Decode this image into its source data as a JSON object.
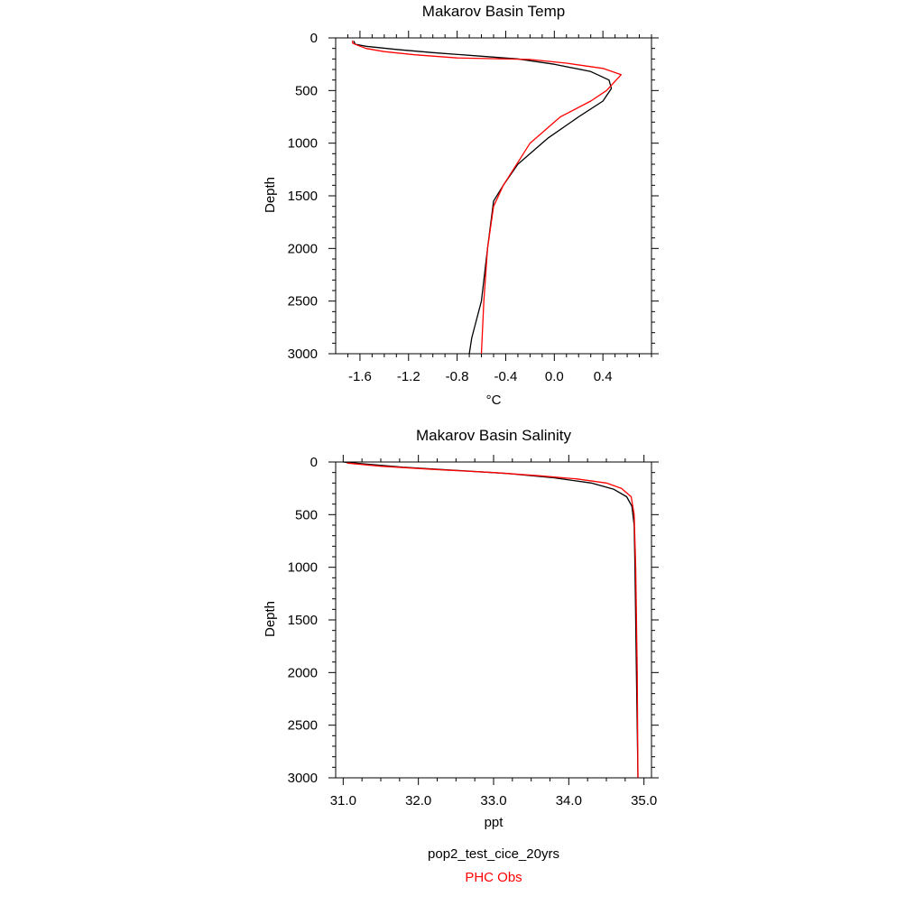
{
  "chart_data": [
    {
      "type": "line",
      "title": "Makarov Basin Temp",
      "xlabel": "°C",
      "ylabel": "Depth",
      "xlim": [
        -1.8,
        0.8
      ],
      "ylim": [
        3000,
        0
      ],
      "y_inverted": true,
      "x_ticks": [
        -1.6,
        -1.2,
        -0.8,
        -0.4,
        0.0,
        0.4
      ],
      "x_tick_labels": [
        "-1.6",
        "-1.2",
        "-0.8",
        "-0.4",
        "0.0",
        "0.4"
      ],
      "y_ticks": [
        0,
        500,
        1000,
        1500,
        2000,
        2500,
        3000
      ],
      "y_tick_labels": [
        "0",
        "500",
        "1000",
        "1500",
        "2000",
        "2500",
        "3000"
      ],
      "grid": false,
      "series": [
        {
          "name": "pop2_test_cice_20yrs",
          "color": "#000000",
          "points": [
            [
              -1.65,
              30
            ],
            [
              -1.64,
              60
            ],
            [
              -1.55,
              80
            ],
            [
              -1.3,
              110
            ],
            [
              -1.0,
              140
            ],
            [
              -0.65,
              170
            ],
            [
              -0.3,
              200
            ],
            [
              0.0,
              250
            ],
            [
              0.3,
              320
            ],
            [
              0.45,
              400
            ],
            [
              0.47,
              480
            ],
            [
              0.4,
              600
            ],
            [
              0.2,
              750
            ],
            [
              -0.05,
              950
            ],
            [
              -0.3,
              1200
            ],
            [
              -0.42,
              1400
            ],
            [
              -0.5,
              1550
            ],
            [
              -0.55,
              2000
            ],
            [
              -0.6,
              2500
            ],
            [
              -0.68,
              2850
            ],
            [
              -0.7,
              3000
            ]
          ]
        },
        {
          "name": "PHC Obs",
          "color": "#ff0000",
          "points": [
            [
              -1.66,
              25
            ],
            [
              -1.66,
              50
            ],
            [
              -1.62,
              70
            ],
            [
              -1.55,
              100
            ],
            [
              -1.4,
              130
            ],
            [
              -1.15,
              160
            ],
            [
              -0.8,
              190
            ],
            [
              -0.2,
              205
            ],
            [
              0.1,
              240
            ],
            [
              0.4,
              290
            ],
            [
              0.55,
              350
            ],
            [
              0.43,
              500
            ],
            [
              0.3,
              600
            ],
            [
              0.05,
              750
            ],
            [
              -0.2,
              1000
            ],
            [
              -0.42,
              1400
            ],
            [
              -0.5,
              1600
            ],
            [
              -0.55,
              2000
            ],
            [
              -0.58,
              2500
            ],
            [
              -0.6,
              3000
            ]
          ]
        }
      ]
    },
    {
      "type": "line",
      "title": "Makarov Basin Salinity",
      "xlabel": "ppt",
      "ylabel": "Depth",
      "xlim": [
        30.9,
        35.1
      ],
      "ylim": [
        3000,
        0
      ],
      "y_inverted": true,
      "x_ticks": [
        31.0,
        32.0,
        33.0,
        34.0,
        35.0
      ],
      "x_tick_labels": [
        "31.0",
        "32.0",
        "33.0",
        "34.0",
        "35.0"
      ],
      "y_ticks": [
        0,
        500,
        1000,
        1500,
        2000,
        2500,
        3000
      ],
      "y_tick_labels": [
        "0",
        "500",
        "1000",
        "1500",
        "2000",
        "2500",
        "3000"
      ],
      "grid": false,
      "series": [
        {
          "name": "pop2_test_cice_20yrs",
          "color": "#000000",
          "points": [
            [
              31.0,
              0
            ],
            [
              31.3,
              20
            ],
            [
              31.8,
              50
            ],
            [
              32.5,
              80
            ],
            [
              33.2,
              110
            ],
            [
              33.8,
              150
            ],
            [
              34.3,
              200
            ],
            [
              34.6,
              260
            ],
            [
              34.77,
              330
            ],
            [
              34.84,
              420
            ],
            [
              34.87,
              600
            ],
            [
              34.88,
              1000
            ],
            [
              34.9,
              2000
            ],
            [
              34.92,
              3000
            ]
          ]
        },
        {
          "name": "PHC Obs",
          "color": "#ff0000",
          "points": [
            [
              31.05,
              10
            ],
            [
              31.5,
              40
            ],
            [
              32.2,
              70
            ],
            [
              33.0,
              100
            ],
            [
              33.6,
              130
            ],
            [
              34.1,
              160
            ],
            [
              34.5,
              200
            ],
            [
              34.7,
              250
            ],
            [
              34.83,
              330
            ],
            [
              34.87,
              500
            ],
            [
              34.89,
              1000
            ],
            [
              34.91,
              2000
            ],
            [
              34.92,
              3000
            ]
          ]
        }
      ]
    }
  ],
  "legend": {
    "model_label": "pop2_test_cice_20yrs",
    "obs_label": "PHC Obs",
    "model_color": "#000000",
    "obs_color": "#ff0000",
    "placement": "bottom-center"
  }
}
